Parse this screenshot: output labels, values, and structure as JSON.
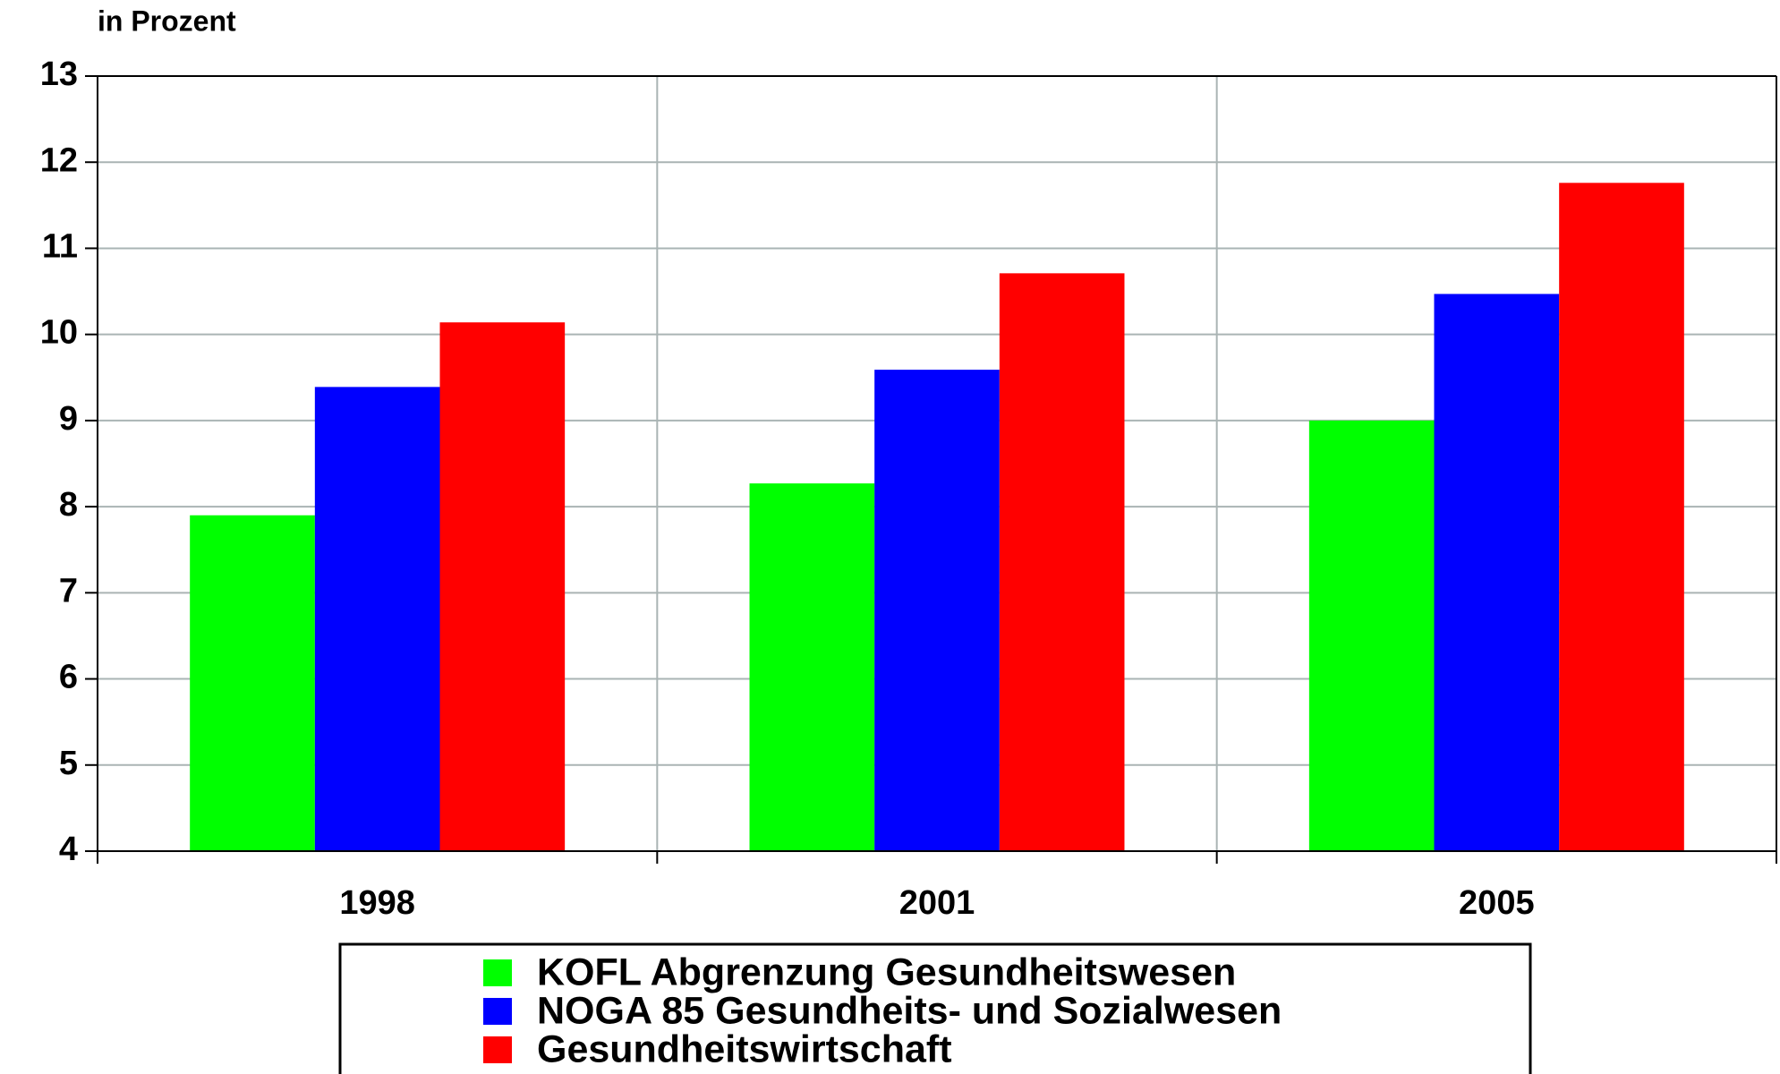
{
  "chart_data": {
    "type": "bar",
    "y_label": "in Prozent",
    "categories": [
      "1998",
      "2001",
      "2005"
    ],
    "series": [
      {
        "name": "KOFL Abgrenzung Gesundheitswesen",
        "color": "#00ff00",
        "values": [
          7.9,
          8.27,
          9.0
        ]
      },
      {
        "name": "NOGA 85 Gesundheits- und Sozialwesen",
        "color": "#0000ff",
        "values": [
          9.39,
          9.59,
          10.47
        ]
      },
      {
        "name": "Gesundheitswirtschaft",
        "color": "#ff0000",
        "values": [
          10.14,
          10.71,
          11.76
        ]
      }
    ],
    "ylim": [
      4,
      13
    ],
    "yticks": [
      4,
      5,
      6,
      7,
      8,
      9,
      10,
      11,
      12,
      13
    ],
    "grid": true,
    "legend": "bottom"
  }
}
